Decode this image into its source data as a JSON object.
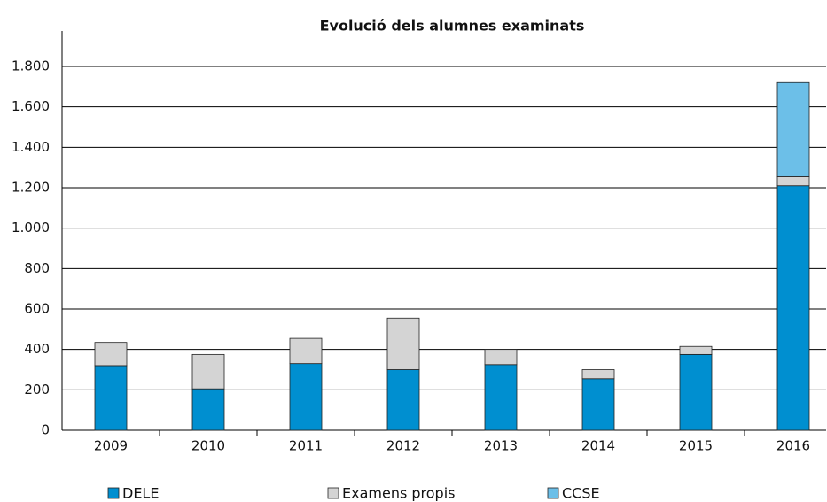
{
  "chart_data": {
    "type": "stacked_bar",
    "title": "Evolució dels alumnes examinats",
    "categories": [
      "2009",
      "2010",
      "2011",
      "2012",
      "2013",
      "2014",
      "2015",
      "2016"
    ],
    "series": [
      {
        "name": "DELE",
        "color": "#008fd0",
        "values": [
          320,
          205,
          330,
          300,
          325,
          255,
          375,
          1210
        ]
      },
      {
        "name": "Examens propis",
        "color": "#d4d4d4",
        "values": [
          115,
          170,
          125,
          255,
          75,
          45,
          40,
          45
        ]
      },
      {
        "name": "CCSE",
        "color": "#6cbfe8",
        "values": [
          0,
          0,
          0,
          0,
          0,
          0,
          0,
          465
        ]
      }
    ],
    "ylim": [
      0,
      1800
    ],
    "yticks": [
      0,
      200,
      400,
      600,
      800,
      {
        "value": 1000,
        "label": "1.000"
      },
      {
        "value": 1200,
        "label": "1.200"
      },
      {
        "value": 1400,
        "label": "1.400"
      },
      {
        "value": 1600,
        "label": "1.600"
      },
      {
        "value": 1800,
        "label": "1.800"
      }
    ],
    "grid": true
  }
}
